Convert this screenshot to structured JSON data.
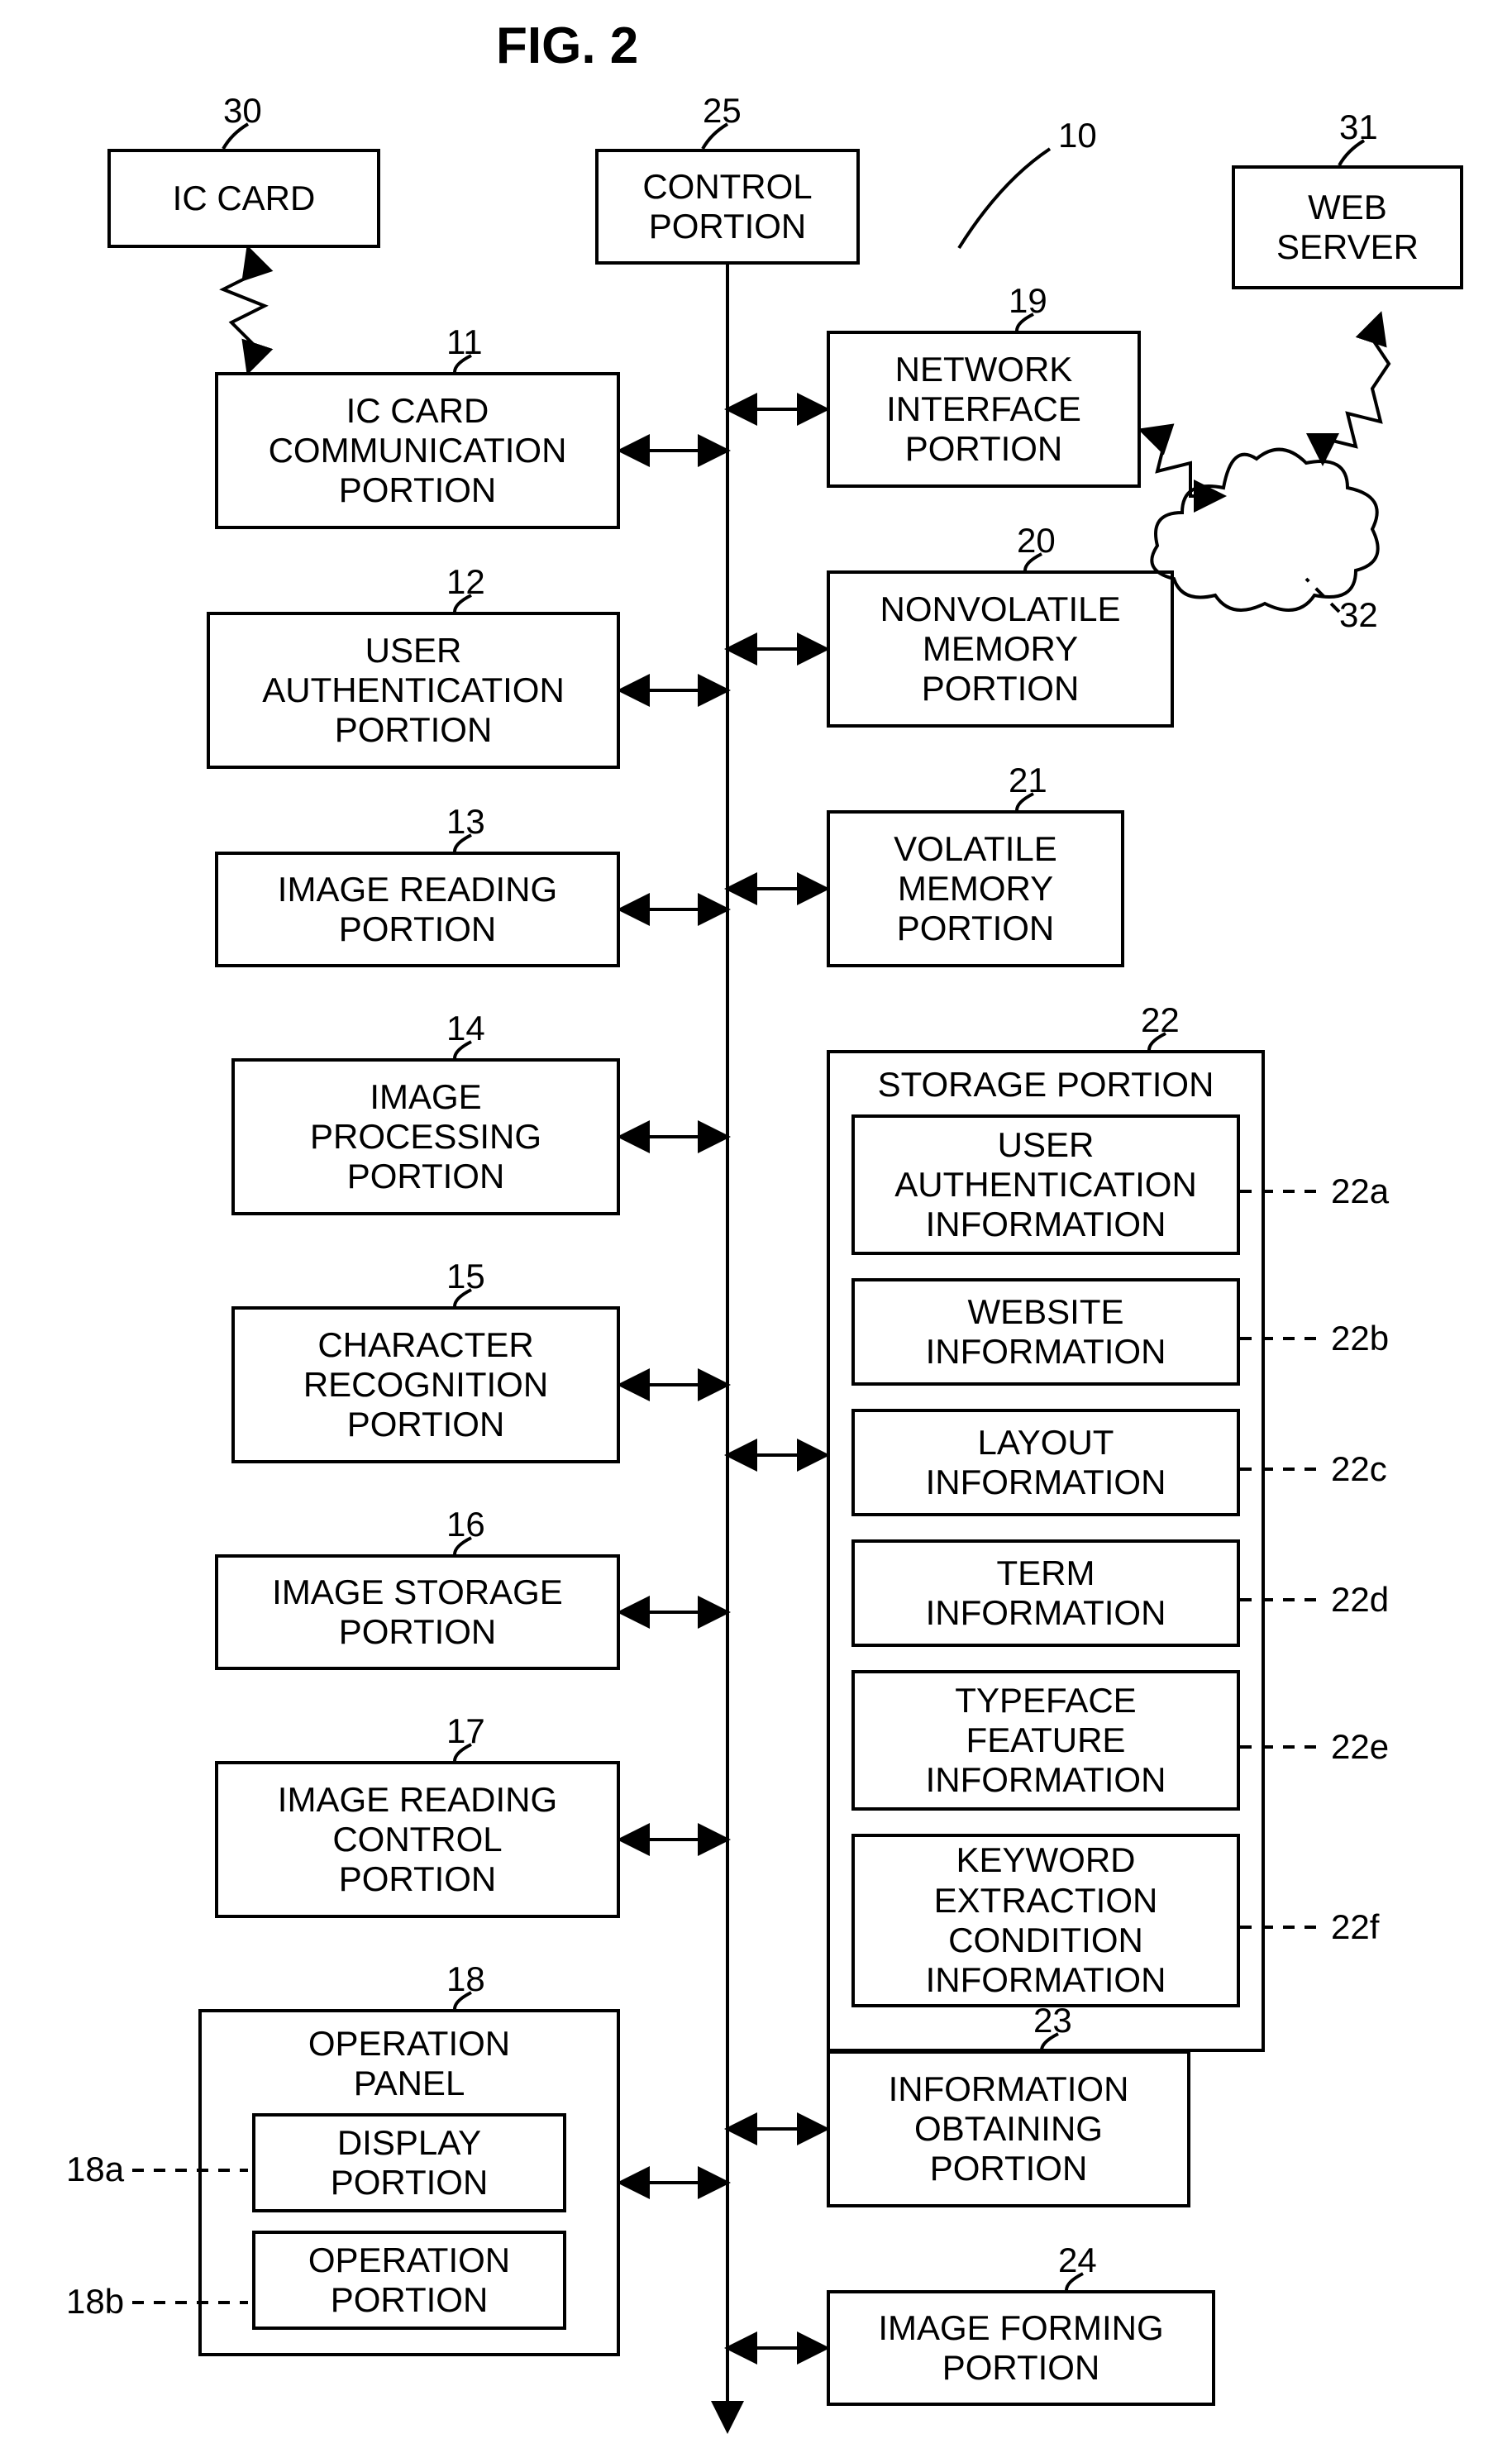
{
  "figure": {
    "title": "FIG. 2",
    "title_fontsize": 62,
    "label_fontsize": 42,
    "ref_fontsize": 42,
    "stroke": "#000000",
    "stroke_width": 4,
    "background": "#ffffff"
  },
  "blocks": {
    "ic_card": {
      "ref": "30",
      "label": "IC CARD"
    },
    "control_portion": {
      "ref": "25",
      "label": "CONTROL\nPORTION"
    },
    "web_server": {
      "ref": "31",
      "label": "WEB\nSERVER"
    },
    "network_if": {
      "ref": "19",
      "label": "NETWORK\nINTERFACE\nPORTION"
    },
    "ic_card_comm": {
      "ref": "11",
      "label": "IC CARD\nCOMMUNICATION\nPORTION"
    },
    "nonvolatile_mem": {
      "ref": "20",
      "label": "NONVOLATILE\nMEMORY\nPORTION"
    },
    "user_auth": {
      "ref": "12",
      "label": "USER\nAUTHENTICATION\nPORTION"
    },
    "volatile_mem": {
      "ref": "21",
      "label": "VOLATILE\nMEMORY\nPORTION"
    },
    "image_reading": {
      "ref": "13",
      "label": "IMAGE READING\nPORTION"
    },
    "image_processing": {
      "ref": "14",
      "label": "IMAGE\nPROCESSING\nPORTION"
    },
    "char_recognition": {
      "ref": "15",
      "label": "CHARACTER\nRECOGNITION\nPORTION"
    },
    "image_storage": {
      "ref": "16",
      "label": "IMAGE STORAGE\nPORTION"
    },
    "img_read_ctrl": {
      "ref": "17",
      "label": "IMAGE READING\nCONTROL\nPORTION"
    },
    "info_obtaining": {
      "ref": "23",
      "label": "INFORMATION\nOBTAINING\nPORTION"
    },
    "image_forming": {
      "ref": "24",
      "label": "IMAGE FORMING\nPORTION"
    },
    "system_ref": {
      "ref": "10"
    },
    "cloud_ref": {
      "ref": "32"
    }
  },
  "op_panel": {
    "ref": "18",
    "title": "OPERATION\nPANEL",
    "display": {
      "ref": "18a",
      "label": "DISPLAY\nPORTION"
    },
    "operation": {
      "ref": "18b",
      "label": "OPERATION\nPORTION"
    }
  },
  "storage": {
    "ref": "22",
    "title": "STORAGE PORTION",
    "items": [
      {
        "ref": "22a",
        "label": "USER\nAUTHENTICATION\nINFORMATION"
      },
      {
        "ref": "22b",
        "label": "WEBSITE\nINFORMATION"
      },
      {
        "ref": "22c",
        "label": "LAYOUT\nINFORMATION"
      },
      {
        "ref": "22d",
        "label": "TERM\nINFORMATION"
      },
      {
        "ref": "22e",
        "label": "TYPEFACE\nFEATURE\nINFORMATION"
      },
      {
        "ref": "22f",
        "label": "KEYWORD\nEXTRACTION\nCONDITION\nINFORMATION"
      }
    ]
  }
}
